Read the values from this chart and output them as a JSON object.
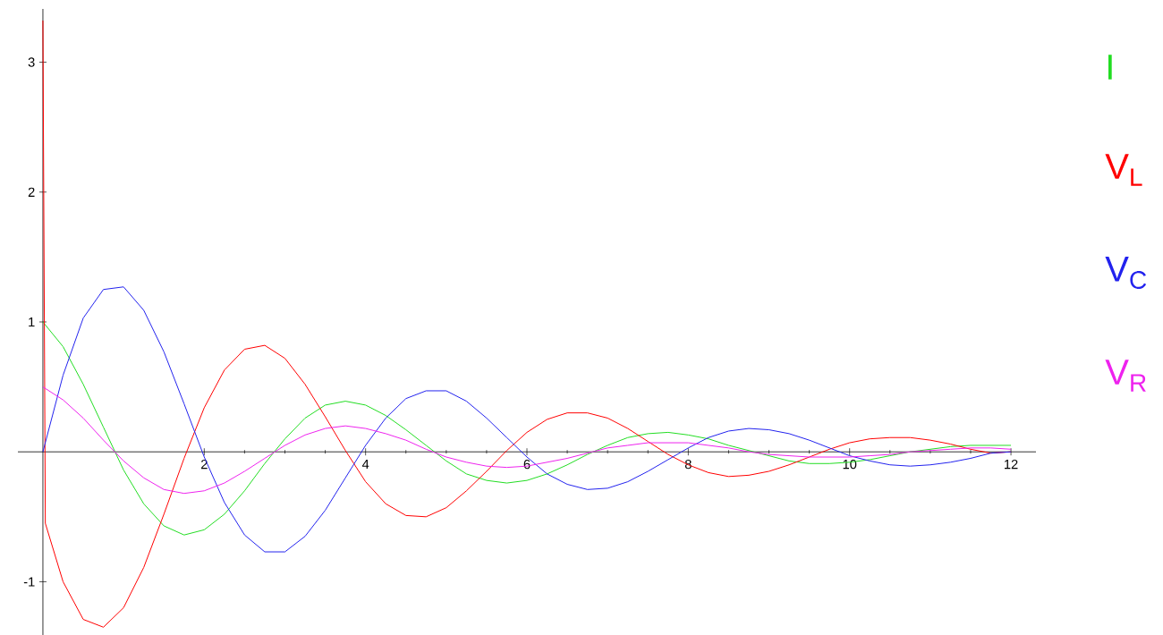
{
  "chart_data": {
    "type": "line",
    "x": [
      0,
      0.25,
      0.5,
      0.75,
      1,
      1.25,
      1.5,
      1.75,
      2,
      2.25,
      2.5,
      2.75,
      3,
      3.25,
      3.5,
      3.75,
      4,
      4.25,
      4.5,
      4.75,
      5,
      5.25,
      5.5,
      5.75,
      6,
      6.25,
      6.5,
      6.75,
      7,
      7.25,
      7.5,
      7.75,
      8,
      8.25,
      8.5,
      8.75,
      9,
      9.25,
      9.5,
      9.75,
      10,
      10.25,
      10.5,
      10.75,
      11,
      11.25,
      11.5,
      11.75,
      12
    ],
    "xlim": [
      -0.31,
      12.31
    ],
    "ylim": [
      -1.41,
      3.41
    ],
    "xticks": [
      2,
      4,
      6,
      8,
      10,
      12
    ],
    "yticks": [
      -1,
      1,
      2,
      3
    ],
    "legend": "right",
    "marker": "none",
    "line_style": "solid",
    "series": [
      {
        "name": "I",
        "color": "#22dd22",
        "values": [
          1,
          0.81,
          0.52,
          0.19,
          -0.14,
          -0.4,
          -0.57,
          -0.64,
          -0.6,
          -0.48,
          -0.3,
          -0.09,
          0.1,
          0.26,
          0.36,
          0.39,
          0.36,
          0.28,
          0.17,
          0.05,
          -0.07,
          -0.17,
          -0.22,
          -0.24,
          -0.22,
          -0.17,
          -0.1,
          -0.02,
          0.05,
          0.11,
          0.14,
          0.15,
          0.13,
          0.1,
          0.05,
          0.01,
          -0.03,
          -0.07,
          -0.09,
          -0.09,
          -0.08,
          -0.06,
          -0.03,
          0.0,
          0.02,
          0.04,
          0.05,
          0.05,
          0.05
        ]
      },
      {
        "name": "V$_{L}$",
        "color": "#ff0000",
        "x": [
          0,
          0.03,
          0.25,
          0.5,
          0.75,
          1,
          1.25,
          1.5,
          1.75,
          2,
          2.25,
          2.5,
          2.75,
          3,
          3.25,
          3.5,
          3.75,
          4,
          4.25,
          4.5,
          4.75,
          5,
          5.25,
          5.5,
          5.75,
          6,
          6.25,
          6.5,
          6.75,
          7,
          7.25,
          7.5,
          7.75,
          8,
          8.25,
          8.5,
          8.75,
          9,
          9.25,
          9.5,
          9.75,
          10,
          10.25,
          10.5,
          10.75,
          11,
          11.25,
          11.5,
          11.75,
          12
        ],
        "values": [
          3.32,
          -0.55,
          -1.0,
          -1.29,
          -1.35,
          -1.2,
          -0.89,
          -0.48,
          -0.05,
          0.34,
          0.63,
          0.79,
          0.82,
          0.72,
          0.52,
          0.27,
          0.01,
          -0.23,
          -0.4,
          -0.49,
          -0.5,
          -0.43,
          -0.3,
          -0.15,
          0.01,
          0.15,
          0.25,
          0.3,
          0.3,
          0.26,
          0.18,
          0.08,
          -0.02,
          -0.1,
          -0.16,
          -0.19,
          -0.18,
          -0.15,
          -0.1,
          -0.04,
          0.02,
          0.07,
          0.1,
          0.11,
          0.11,
          0.09,
          0.06,
          0.02,
          -0.01,
          0.0
        ]
      },
      {
        "name": "V$_{C}$",
        "color": "#2222ee",
        "values": [
          0,
          0.59,
          1.03,
          1.25,
          1.27,
          1.09,
          0.77,
          0.37,
          -0.04,
          -0.39,
          -0.64,
          -0.77,
          -0.77,
          -0.65,
          -0.45,
          -0.2,
          0.05,
          0.26,
          0.41,
          0.47,
          0.47,
          0.39,
          0.26,
          0.11,
          -0.04,
          -0.17,
          -0.25,
          -0.29,
          -0.28,
          -0.23,
          -0.15,
          -0.06,
          0.03,
          0.11,
          0.16,
          0.18,
          0.17,
          0.14,
          0.09,
          0.03,
          -0.03,
          -0.07,
          -0.1,
          -0.11,
          -0.1,
          -0.08,
          -0.05,
          -0.01,
          0.0
        ]
      },
      {
        "name": "V$_{R}$",
        "color": "#ee22ee",
        "values": [
          0.5,
          0.4,
          0.26,
          0.09,
          -0.07,
          -0.2,
          -0.29,
          -0.32,
          -0.3,
          -0.24,
          -0.15,
          -0.05,
          0.05,
          0.13,
          0.18,
          0.2,
          0.18,
          0.14,
          0.09,
          0.02,
          -0.04,
          -0.08,
          -0.11,
          -0.12,
          -0.11,
          -0.08,
          -0.05,
          -0.01,
          0.03,
          0.05,
          0.07,
          0.07,
          0.07,
          0.05,
          0.03,
          0.0,
          -0.02,
          -0.03,
          -0.04,
          -0.04,
          -0.04,
          -0.03,
          -0.02,
          0.0,
          0.01,
          0.02,
          0.03,
          0.03,
          0.02
        ]
      }
    ]
  }
}
